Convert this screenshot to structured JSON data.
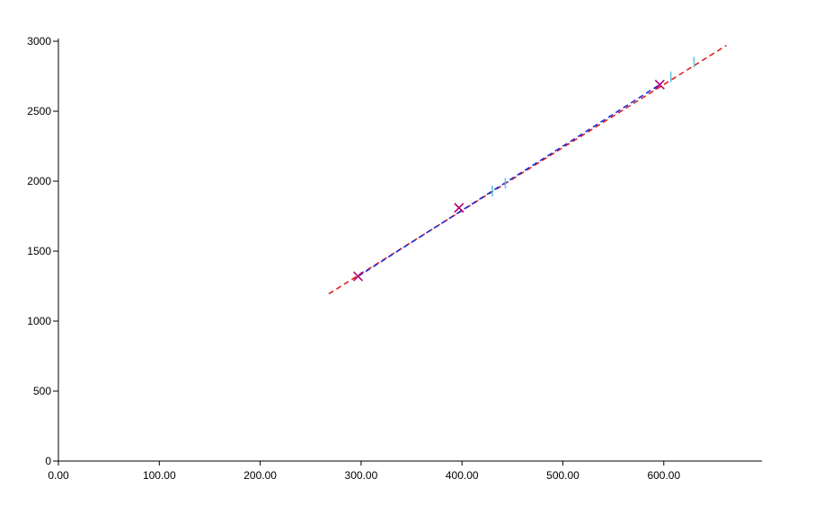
{
  "chart_data": {
    "type": "scatter",
    "title": "",
    "xlabel": "",
    "ylabel": "",
    "xlim": [
      0,
      700
    ],
    "ylim": [
      0,
      3000
    ],
    "x_ticks": [
      "0.00",
      "100.00",
      "200.00",
      "300.00",
      "400.00",
      "500.00",
      "600.00"
    ],
    "y_ticks": [
      "0",
      "500",
      "1000",
      "1500",
      "2000",
      "2500",
      "3000"
    ],
    "grid": false,
    "series": [
      {
        "marker": "x",
        "color": "#b0007a",
        "points": [
          {
            "x": 297,
            "y": 1320
          },
          {
            "x": 397,
            "y": 1810
          },
          {
            "x": 596,
            "y": 2690
          }
        ]
      },
      {
        "marker": "|",
        "color": "#5ec8e0",
        "points": [
          {
            "x": 430,
            "y": 1930
          },
          {
            "x": 443,
            "y": 1985
          },
          {
            "x": 607,
            "y": 2745
          },
          {
            "x": 630,
            "y": 2850
          }
        ]
      }
    ],
    "lines": [
      {
        "style": "dashed",
        "color": "#e02020",
        "from": {
          "x": 268,
          "y": 1195
        },
        "to": {
          "x": 662,
          "y": 2970
        }
      },
      {
        "style": "dashed",
        "color": "#1a2ee0",
        "from": {
          "x": 297,
          "y": 1320
        },
        "to": {
          "x": 596,
          "y": 2690
        }
      }
    ]
  }
}
